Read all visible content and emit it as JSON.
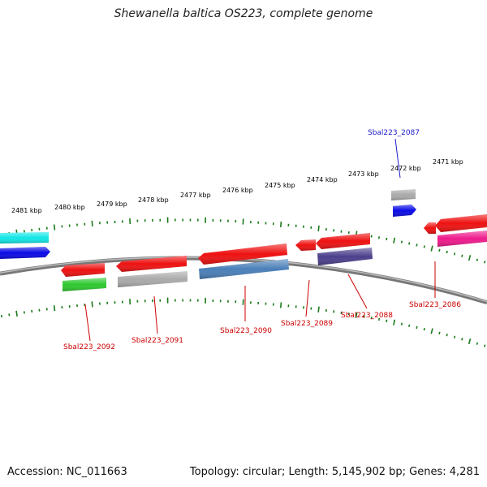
{
  "title": "Shewanella baltica OS223, complete genome",
  "footer": {
    "accession": "Accession: NC_011663",
    "summary": "Topology: circular; Length: 5,145,902 bp; Genes: 4,281"
  },
  "ruler_labels": [
    "2481 kbp",
    "2480 kbp",
    "2479 kbp",
    "2478 kbp",
    "2477 kbp",
    "2476 kbp",
    "2475 kbp",
    "2474 kbp",
    "2473 kbp",
    "2472 kbp",
    "2471 kbp"
  ],
  "gene_labels": [
    {
      "name": "Sbal223_2087",
      "color": "#1a1acc"
    },
    {
      "name": "Sbal223_2086",
      "color": "#cc0000"
    },
    {
      "name": "Sbal223_2088",
      "color": "#cc0000"
    },
    {
      "name": "Sbal223_2089",
      "color": "#cc0000"
    },
    {
      "name": "Sbal223_2090",
      "color": "#cc0000"
    },
    {
      "name": "Sbal223_2091",
      "color": "#cc0000"
    },
    {
      "name": "Sbal223_2092",
      "color": "#cc0000"
    }
  ],
  "colors": {
    "cds_red": "#ee1111",
    "gray": "#aaaaaa",
    "blue": "#0a0ae6",
    "cyan": "#11e6e6",
    "steelblue": "#4a7fb8",
    "purple": "#4b3f8c",
    "green": "#2ec82e",
    "magenta": "#ee1a8c",
    "backbone": "#808080",
    "tick_green": "#1a7a1a"
  }
}
